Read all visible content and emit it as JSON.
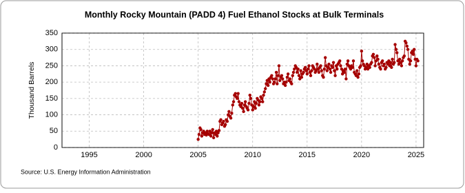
{
  "chart_data": {
    "type": "line",
    "title": "Monthly Rocky Mountain (PADD 4) Fuel Ethanol Stocks at Bulk Terminals",
    "y_label": "Thousand Barrels",
    "source": "Source: U.S. Energy Information Administration",
    "xlim": [
      1992.5,
      2025.7
    ],
    "xticks": [
      1995,
      2000,
      2005,
      2010,
      2015,
      2020,
      2025
    ],
    "ylim": [
      0,
      350
    ],
    "yticks": [
      0,
      50,
      100,
      150,
      200,
      250,
      300,
      350
    ],
    "grid": true,
    "series": [
      {
        "name": "Rocky Mountain (PADD 4) Fuel Ethanol Stocks",
        "color": "#a50000",
        "x": [
          2005,
          2005.08,
          2005.17,
          2005.25,
          2005.33,
          2005.42,
          2005.5,
          2005.58,
          2005.67,
          2005.75,
          2005.83,
          2005.92,
          2006,
          2006.08,
          2006.17,
          2006.25,
          2006.33,
          2006.42,
          2006.5,
          2006.58,
          2006.67,
          2006.75,
          2006.83,
          2006.92,
          2007,
          2007.08,
          2007.17,
          2007.25,
          2007.33,
          2007.42,
          2007.5,
          2007.58,
          2007.67,
          2007.75,
          2007.83,
          2007.92,
          2008,
          2008.08,
          2008.17,
          2008.25,
          2008.33,
          2008.42,
          2008.5,
          2008.58,
          2008.67,
          2008.75,
          2008.83,
          2008.92,
          2009,
          2009.08,
          2009.17,
          2009.25,
          2009.33,
          2009.42,
          2009.5,
          2009.58,
          2009.67,
          2009.75,
          2009.83,
          2009.92,
          2010,
          2010.08,
          2010.17,
          2010.25,
          2010.33,
          2010.42,
          2010.5,
          2010.58,
          2010.67,
          2010.75,
          2010.83,
          2010.92,
          2011,
          2011.08,
          2011.17,
          2011.25,
          2011.33,
          2011.42,
          2011.5,
          2011.58,
          2011.67,
          2011.75,
          2011.83,
          2011.92,
          2012,
          2012.08,
          2012.17,
          2012.25,
          2012.33,
          2012.42,
          2012.5,
          2012.58,
          2012.67,
          2012.75,
          2012.83,
          2012.92,
          2013,
          2013.08,
          2013.17,
          2013.25,
          2013.33,
          2013.42,
          2013.5,
          2013.58,
          2013.67,
          2013.75,
          2013.83,
          2013.92,
          2014,
          2014.08,
          2014.17,
          2014.25,
          2014.33,
          2014.42,
          2014.5,
          2014.58,
          2014.67,
          2014.75,
          2014.83,
          2014.92,
          2015,
          2015.08,
          2015.17,
          2015.25,
          2015.33,
          2015.42,
          2015.5,
          2015.58,
          2015.67,
          2015.75,
          2015.83,
          2015.92,
          2016,
          2016.08,
          2016.17,
          2016.25,
          2016.33,
          2016.42,
          2016.5,
          2016.58,
          2016.67,
          2016.75,
          2016.83,
          2016.92,
          2017,
          2017.08,
          2017.17,
          2017.25,
          2017.33,
          2017.42,
          2017.5,
          2017.58,
          2017.67,
          2017.75,
          2017.83,
          2017.92,
          2018,
          2018.08,
          2018.17,
          2018.25,
          2018.33,
          2018.42,
          2018.5,
          2018.58,
          2018.67,
          2018.75,
          2018.83,
          2018.92,
          2019,
          2019.08,
          2019.17,
          2019.25,
          2019.33,
          2019.42,
          2019.5,
          2019.58,
          2019.67,
          2019.75,
          2019.83,
          2019.92,
          2020,
          2020.08,
          2020.17,
          2020.25,
          2020.33,
          2020.42,
          2020.5,
          2020.58,
          2020.67,
          2020.75,
          2020.83,
          2020.92,
          2021,
          2021.08,
          2021.17,
          2021.25,
          2021.33,
          2021.42,
          2021.5,
          2021.58,
          2021.67,
          2021.75,
          2021.83,
          2021.92,
          2022,
          2022.08,
          2022.17,
          2022.25,
          2022.33,
          2022.42,
          2022.5,
          2022.58,
          2022.67,
          2022.75,
          2022.83,
          2022.92,
          2023,
          2023.08,
          2023.17,
          2023.25,
          2023.33,
          2023.42,
          2023.5,
          2023.58,
          2023.67,
          2023.75,
          2023.83,
          2023.92,
          2024,
          2024.08,
          2024.17,
          2024.25,
          2024.33,
          2024.42,
          2024.5,
          2024.58,
          2024.67,
          2024.75,
          2024.83,
          2024.92,
          2025,
          2025.08,
          2025.17
        ],
        "values": [
          25,
          40,
          60,
          55,
          35,
          45,
          50,
          40,
          45,
          38,
          50,
          42,
          40,
          50,
          35,
          45,
          55,
          30,
          45,
          40,
          50,
          35,
          45,
          52,
          80,
          85,
          70,
          75,
          80,
          65,
          70,
          85,
          80,
          100,
          110,
          95,
          90,
          105,
          130,
          140,
          160,
          165,
          155,
          150,
          165,
          140,
          130,
          125,
          135,
          120,
          110,
          130,
          140,
          125,
          120,
          115,
          135,
          160,
          150,
          130,
          115,
          125,
          140,
          120,
          135,
          150,
          145,
          130,
          140,
          155,
          150,
          140,
          160,
          170,
          180,
          195,
          205,
          190,
          210,
          200,
          215,
          220,
          210,
          195,
          200,
          210,
          230,
          195,
          220,
          250,
          205,
          215,
          220,
          210,
          195,
          200,
          190,
          200,
          215,
          225,
          205,
          210,
          200,
          195,
          220,
          230,
          240,
          250,
          245,
          230,
          240,
          220,
          210,
          235,
          215,
          225,
          230,
          240,
          245,
          235,
          225,
          240,
          250,
          230,
          220,
          235,
          250,
          245,
          240,
          230,
          235,
          255,
          240,
          230,
          245,
          250,
          235,
          220,
          215,
          240,
          275,
          250,
          235,
          245,
          255,
          240,
          230,
          250,
          245,
          260,
          235,
          220,
          250,
          240,
          255,
          260,
          265,
          250,
          240,
          225,
          235,
          230,
          240,
          210,
          255,
          265,
          250,
          245,
          240,
          250,
          245,
          265,
          230,
          225,
          220,
          235,
          215,
          225,
          245,
          250,
          295,
          265,
          255,
          250,
          240,
          245,
          255,
          240,
          250,
          245,
          255,
          260,
          280,
          285,
          275,
          250,
          265,
          280,
          270,
          255,
          245,
          240,
          260,
          265,
          250,
          255,
          240,
          245,
          260,
          255,
          265,
          250,
          260,
          245,
          270,
          255,
          260,
          315,
          300,
          290,
          265,
          255,
          270,
          260,
          250,
          265,
          275,
          280,
          325,
          320,
          310,
          300,
          270,
          255,
          265,
          290,
          295,
          285,
          300,
          270,
          250,
          270,
          265
        ]
      }
    ]
  }
}
